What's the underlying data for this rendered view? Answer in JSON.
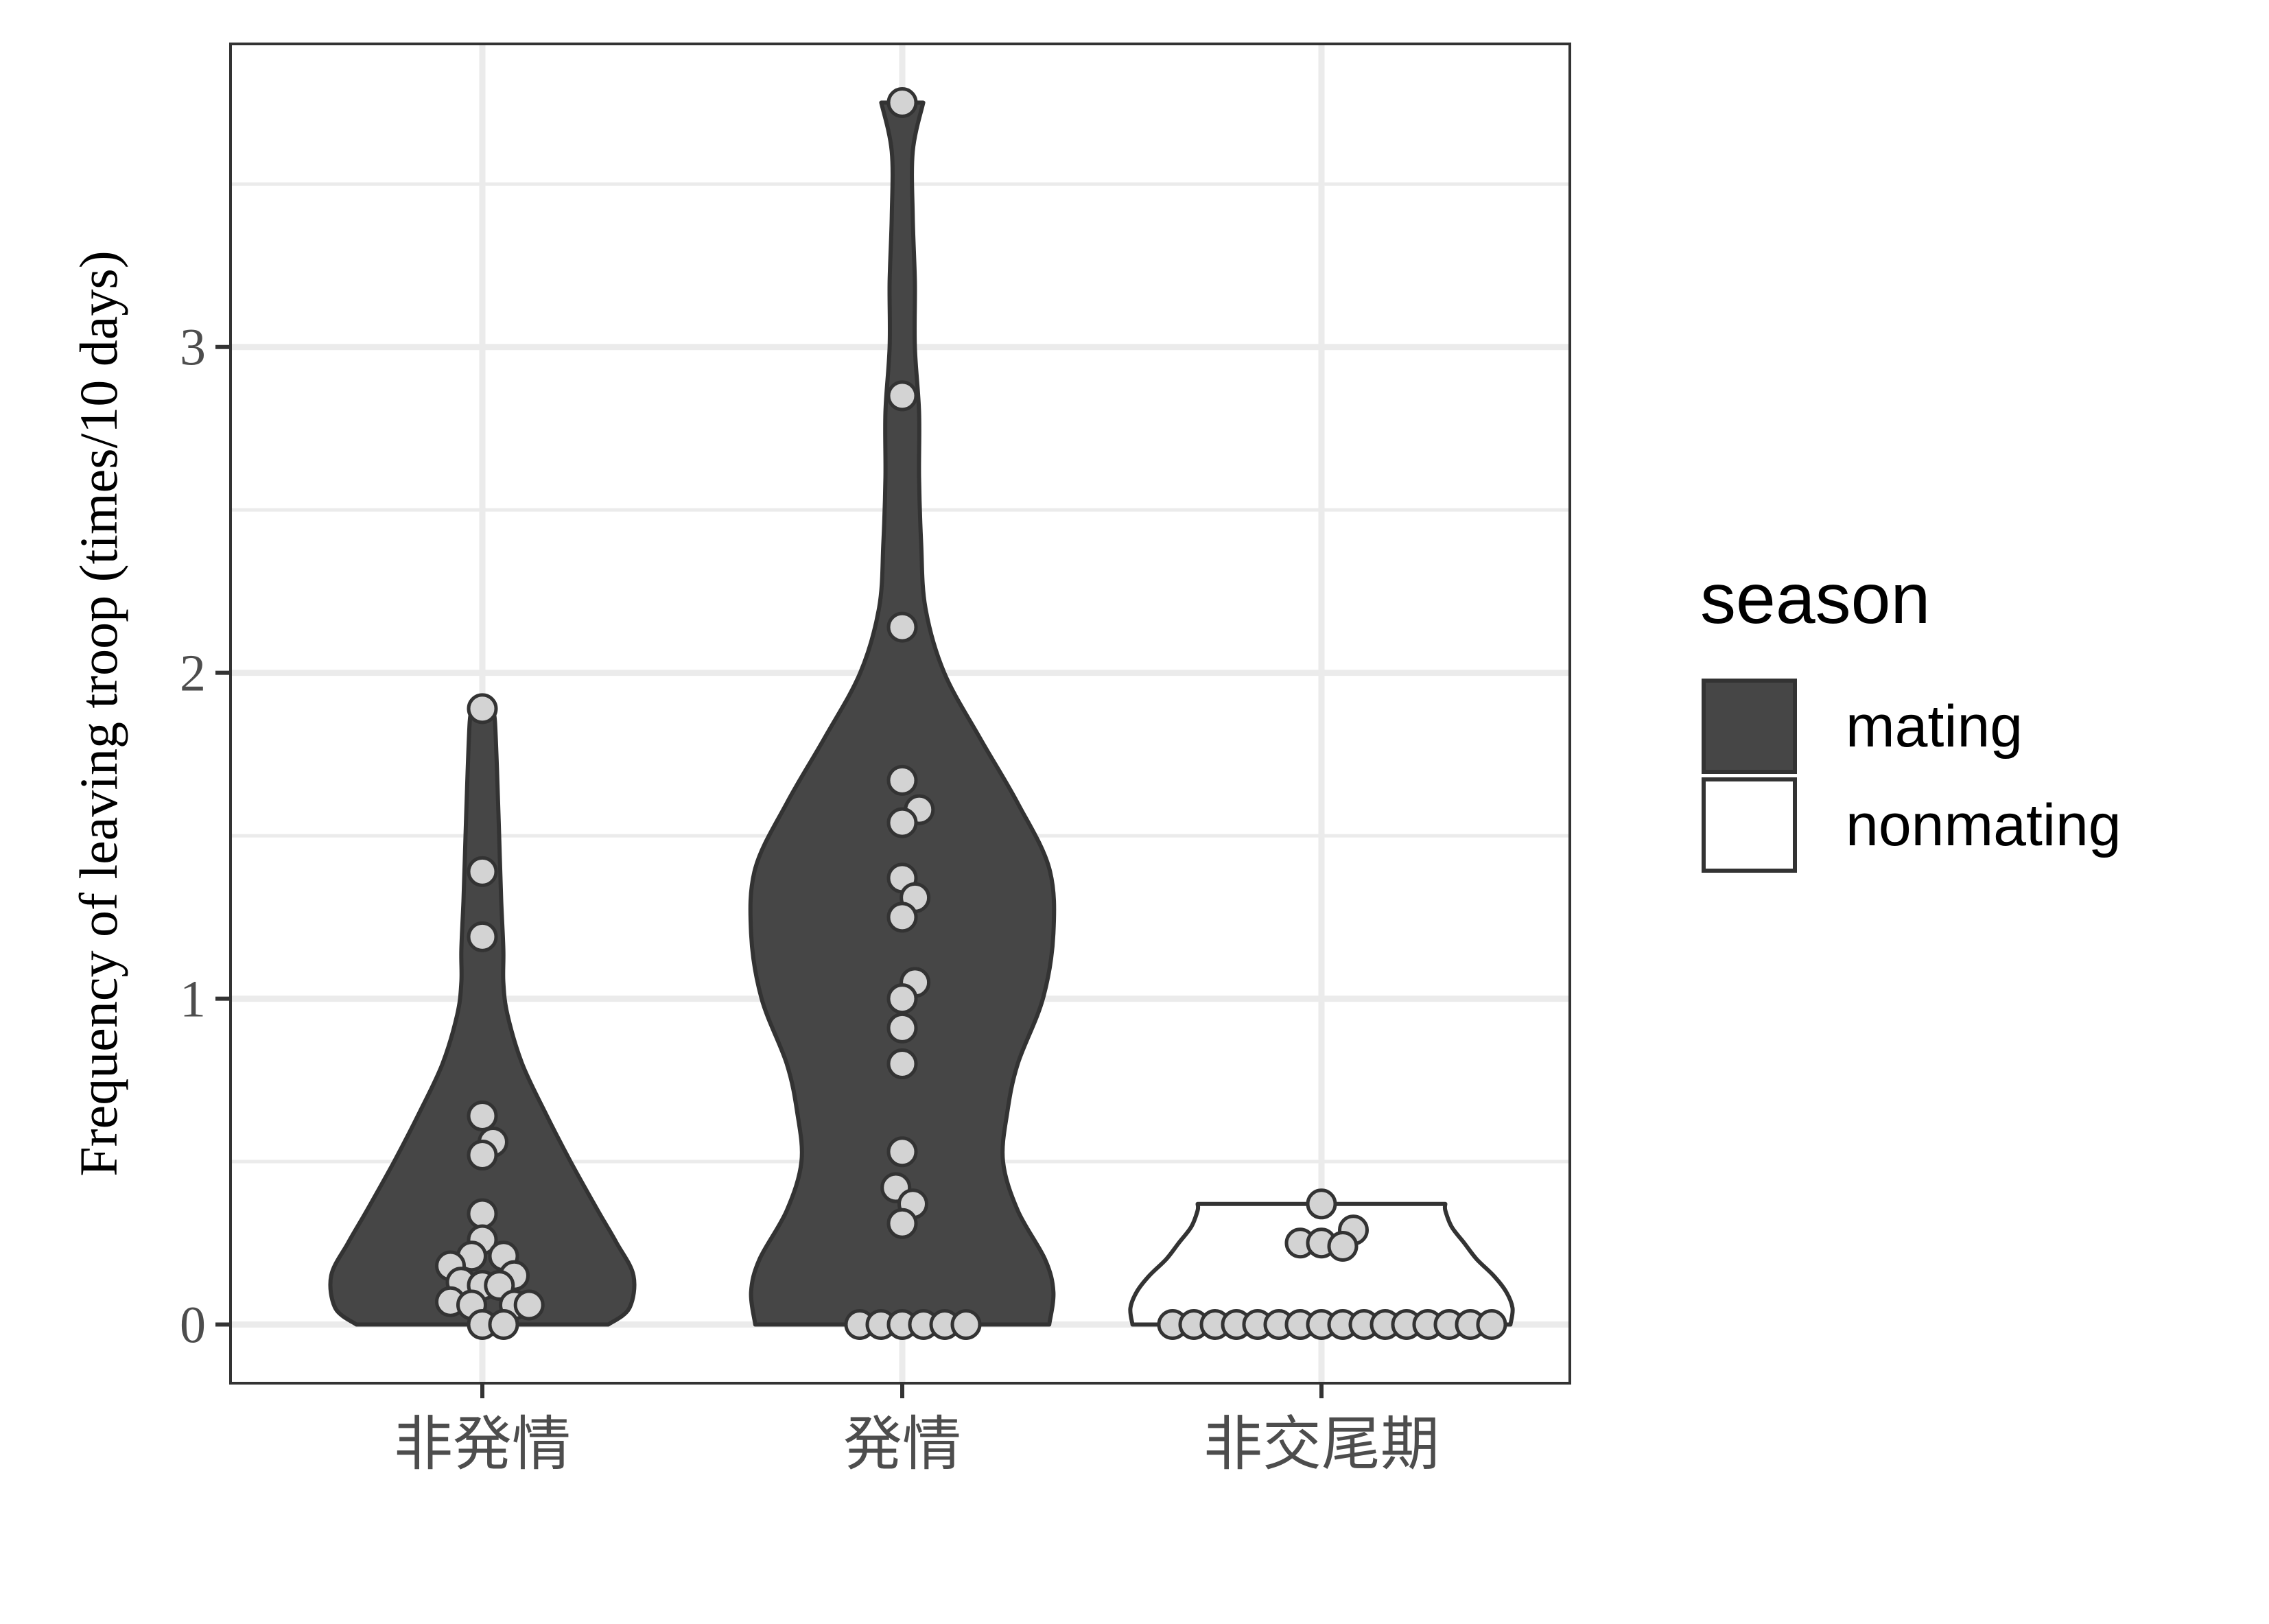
{
  "chart_data": {
    "type": "violin",
    "title": "",
    "xlabel": "",
    "ylabel": "Frequency of leaving troop (times/10 days)",
    "ylim": [
      -0.18,
      3.93
    ],
    "yticks": [
      0,
      1,
      2,
      3
    ],
    "yticks_labels": [
      "0",
      "1",
      "2",
      "3"
    ],
    "categories": [
      "非発情",
      "発情",
      "非交尾期"
    ],
    "grid": true,
    "legend": {
      "title": "season",
      "placement": "right",
      "entries": [
        {
          "label": "mating",
          "fill": "#464646"
        },
        {
          "label": "nonmating",
          "fill": "#ffffff"
        }
      ]
    },
    "colors": {
      "mating_fill": "#464646",
      "nonmating_fill": "#ffffff",
      "outline": "#333333",
      "point_fill": "#d3d3d3",
      "grid": "#ebebeb",
      "panel_border": "#333333"
    },
    "groups": [
      {
        "category": "非発情",
        "season": "mating",
        "density_profile": [
          [
            0,
            0.6
          ],
          [
            0.05,
            0.7
          ],
          [
            0.15,
            0.72
          ],
          [
            0.25,
            0.64
          ],
          [
            0.35,
            0.55
          ],
          [
            0.5,
            0.42
          ],
          [
            0.65,
            0.3
          ],
          [
            0.8,
            0.19
          ],
          [
            0.95,
            0.12
          ],
          [
            1.05,
            0.1
          ],
          [
            1.15,
            0.1
          ],
          [
            1.3,
            0.09
          ],
          [
            1.5,
            0.08
          ],
          [
            1.7,
            0.07
          ],
          [
            1.85,
            0.06
          ],
          [
            1.89,
            0.05
          ]
        ],
        "points": [
          {
            "y": 1.89,
            "dx": 0
          },
          {
            "y": 1.39,
            "dx": 0
          },
          {
            "y": 1.19,
            "dx": 0
          },
          {
            "y": 0.64,
            "dx": 0
          },
          {
            "y": 0.56,
            "dx": 0.5
          },
          {
            "y": 0.52,
            "dx": 0
          },
          {
            "y": 0.34,
            "dx": 0
          },
          {
            "y": 0.26,
            "dx": 0
          },
          {
            "y": 0.21,
            "dx": -0.5
          },
          {
            "y": 0.21,
            "dx": 1
          },
          {
            "y": 0.18,
            "dx": -1.5
          },
          {
            "y": 0.15,
            "dx": 1.5
          },
          {
            "y": 0.13,
            "dx": -1
          },
          {
            "y": 0.12,
            "dx": 0
          },
          {
            "y": 0.12,
            "dx": 0.8
          },
          {
            "y": 0.07,
            "dx": -1.5
          },
          {
            "y": 0.06,
            "dx": -0.5
          },
          {
            "y": 0.06,
            "dx": 1.5
          },
          {
            "y": 0.06,
            "dx": 2.2
          },
          {
            "y": 0.0,
            "dx": 0
          },
          {
            "y": 0.0,
            "dx": 1
          }
        ]
      },
      {
        "category": "発情",
        "season": "mating",
        "density_profile": [
          [
            0,
            0.7
          ],
          [
            0.1,
            0.72
          ],
          [
            0.2,
            0.68
          ],
          [
            0.35,
            0.55
          ],
          [
            0.5,
            0.48
          ],
          [
            0.65,
            0.5
          ],
          [
            0.8,
            0.55
          ],
          [
            1.0,
            0.67
          ],
          [
            1.2,
            0.72
          ],
          [
            1.4,
            0.7
          ],
          [
            1.6,
            0.55
          ],
          [
            1.8,
            0.37
          ],
          [
            2.0,
            0.2
          ],
          [
            2.2,
            0.11
          ],
          [
            2.4,
            0.09
          ],
          [
            2.6,
            0.08
          ],
          [
            2.8,
            0.08
          ],
          [
            3.0,
            0.06
          ],
          [
            3.2,
            0.06
          ],
          [
            3.4,
            0.05
          ],
          [
            3.6,
            0.05
          ],
          [
            3.75,
            0.1
          ]
        ],
        "points": [
          {
            "y": 3.75,
            "dx": 0
          },
          {
            "y": 2.85,
            "dx": 0
          },
          {
            "y": 2.14,
            "dx": 0
          },
          {
            "y": 1.67,
            "dx": 0
          },
          {
            "y": 1.58,
            "dx": 0.8
          },
          {
            "y": 1.54,
            "dx": 0
          },
          {
            "y": 1.37,
            "dx": 0
          },
          {
            "y": 1.31,
            "dx": 0.6
          },
          {
            "y": 1.25,
            "dx": 0
          },
          {
            "y": 1.05,
            "dx": 0.6
          },
          {
            "y": 1.0,
            "dx": 0
          },
          {
            "y": 0.91,
            "dx": 0
          },
          {
            "y": 0.8,
            "dx": 0
          },
          {
            "y": 0.53,
            "dx": 0
          },
          {
            "y": 0.42,
            "dx": -0.3
          },
          {
            "y": 0.37,
            "dx": 0.5
          },
          {
            "y": 0.31,
            "dx": 0
          },
          {
            "y": 0.0,
            "dx": -2
          },
          {
            "y": 0.0,
            "dx": -1
          },
          {
            "y": 0.0,
            "dx": 0
          },
          {
            "y": 0.0,
            "dx": 1
          },
          {
            "y": 0.0,
            "dx": 2
          },
          {
            "y": 0.0,
            "dx": 3
          }
        ]
      },
      {
        "category": "非交尾期",
        "season": "nonmating",
        "density_profile": [
          [
            0,
            0.9
          ],
          [
            0.05,
            0.91
          ],
          [
            0.1,
            0.88
          ],
          [
            0.15,
            0.82
          ],
          [
            0.2,
            0.74
          ],
          [
            0.25,
            0.68
          ],
          [
            0.3,
            0.62
          ],
          [
            0.35,
            0.59
          ],
          [
            0.37,
            0.59
          ]
        ],
        "points": [
          {
            "y": 0.37,
            "dx": 0
          },
          {
            "y": 0.29,
            "dx": 1.5
          },
          {
            "y": 0.25,
            "dx": -1
          },
          {
            "y": 0.25,
            "dx": 0
          },
          {
            "y": 0.24,
            "dx": 1
          },
          {
            "y": 0.0,
            "dx": -7
          },
          {
            "y": 0.0,
            "dx": -6
          },
          {
            "y": 0.0,
            "dx": -5
          },
          {
            "y": 0.0,
            "dx": -4
          },
          {
            "y": 0.0,
            "dx": -3
          },
          {
            "y": 0.0,
            "dx": -2
          },
          {
            "y": 0.0,
            "dx": -1
          },
          {
            "y": 0.0,
            "dx": 0
          },
          {
            "y": 0.0,
            "dx": 1
          },
          {
            "y": 0.0,
            "dx": 2
          },
          {
            "y": 0.0,
            "dx": 3
          },
          {
            "y": 0.0,
            "dx": 4
          },
          {
            "y": 0.0,
            "dx": 5
          },
          {
            "y": 0.0,
            "dx": 6
          },
          {
            "y": 0.0,
            "dx": 7
          },
          {
            "y": 0.0,
            "dx": 8
          }
        ]
      }
    ]
  }
}
